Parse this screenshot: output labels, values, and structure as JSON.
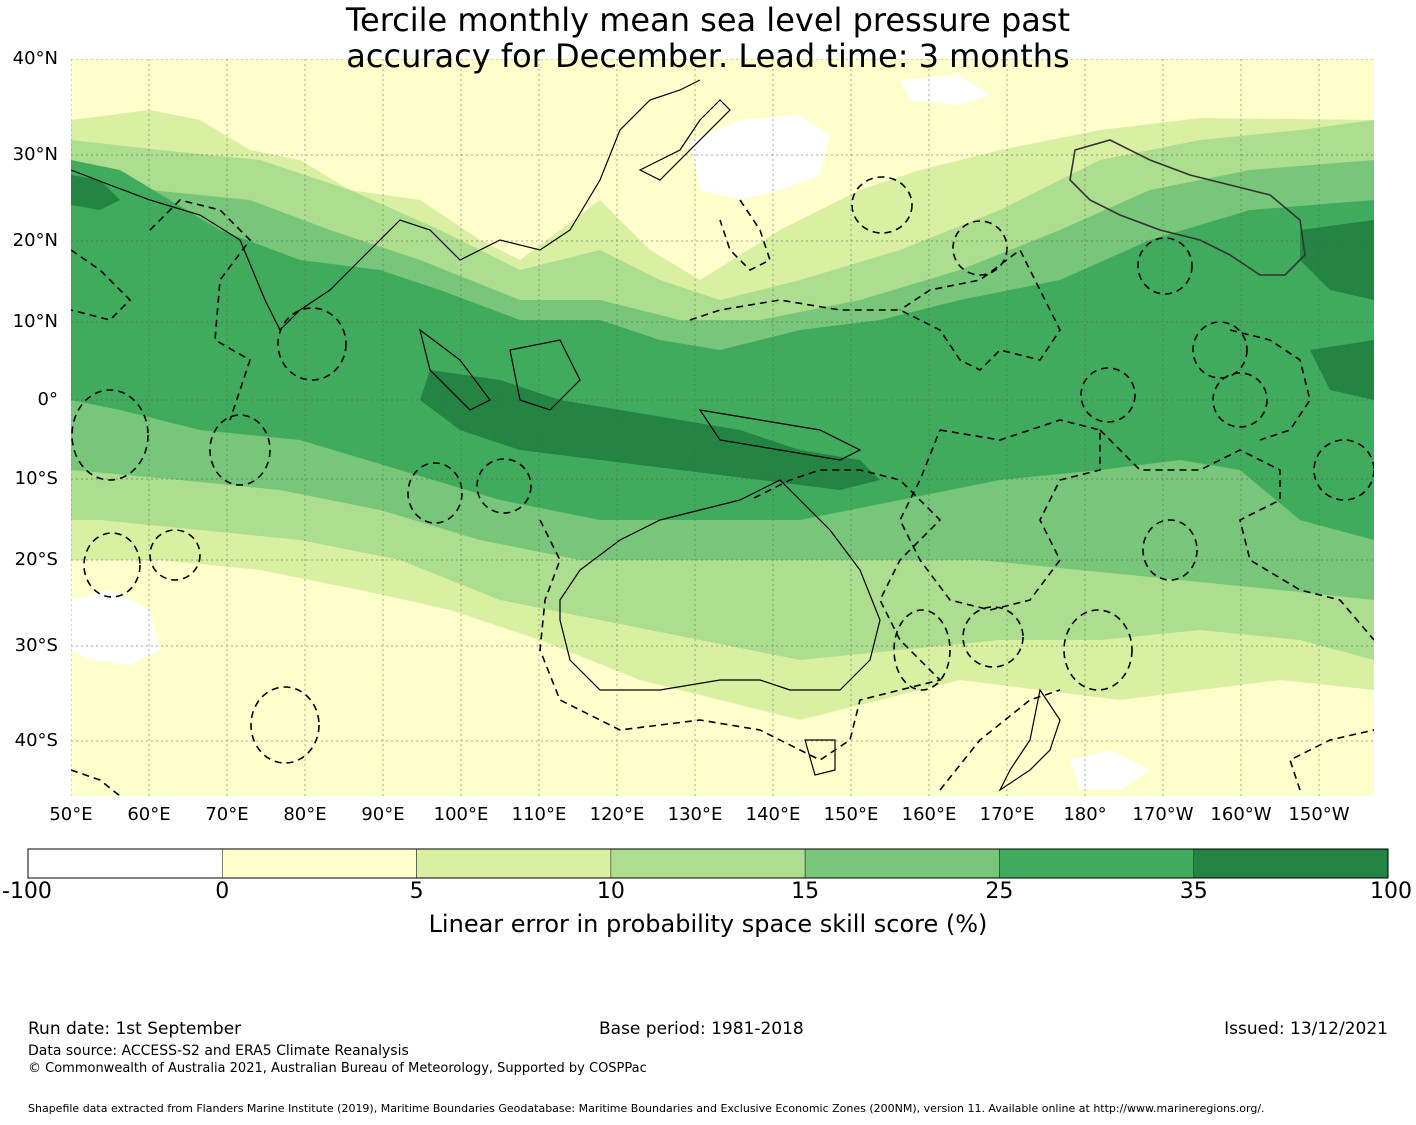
{
  "title": {
    "line1": "Tercile monthly mean sea level pressure past",
    "line2": "accuracy for December. Lead time: 3 months"
  },
  "map": {
    "lat_labels": [
      "40°N",
      "30°N",
      "20°N",
      "10°N",
      "0°",
      "10°S",
      "20°S",
      "30°S",
      "40°S"
    ],
    "lon_labels": [
      "50°E",
      "60°E",
      "70°E",
      "80°E",
      "90°E",
      "100°E",
      "110°E",
      "120°E",
      "130°E",
      "140°E",
      "150°E",
      "160°E",
      "170°E",
      "180°",
      "170°W",
      "160°W",
      "150°W"
    ],
    "lat_range": [
      "46°S",
      "40°N"
    ],
    "lon_range": [
      "50°E",
      "145°W"
    ],
    "eez_boundary_style": "dashed",
    "hawaii_region_style": "solid"
  },
  "colorbar": {
    "ticks": [
      "-100",
      "0",
      "5",
      "10",
      "15",
      "25",
      "35",
      "100"
    ],
    "colors": [
      "#ffffff",
      "#ffffcc",
      "#d9f0a3",
      "#addd8e",
      "#78c679",
      "#41ab5d",
      "#238443"
    ],
    "label": "Linear error in probability space skill score (%)"
  },
  "footer": {
    "run_date": "Run date: 1st September",
    "base_period": "Base period: 1981-2018",
    "issued": "Issued: 13/12/2021",
    "data_source": "Data source: ACCESS-S2 and ERA5 Climate Reanalysis",
    "copyright": "© Commonwealth of Australia 2021, Australian Bureau of Meteorology, Supported by COSPPac",
    "shapefile": "Shapefile data extracted from Flanders Marine Institute (2019), Maritime Boundaries Geodatabase: Maritime Boundaries and Exclusive Economic Zones (200NM), version 11. Available online at http://www.marineregions.org/."
  }
}
